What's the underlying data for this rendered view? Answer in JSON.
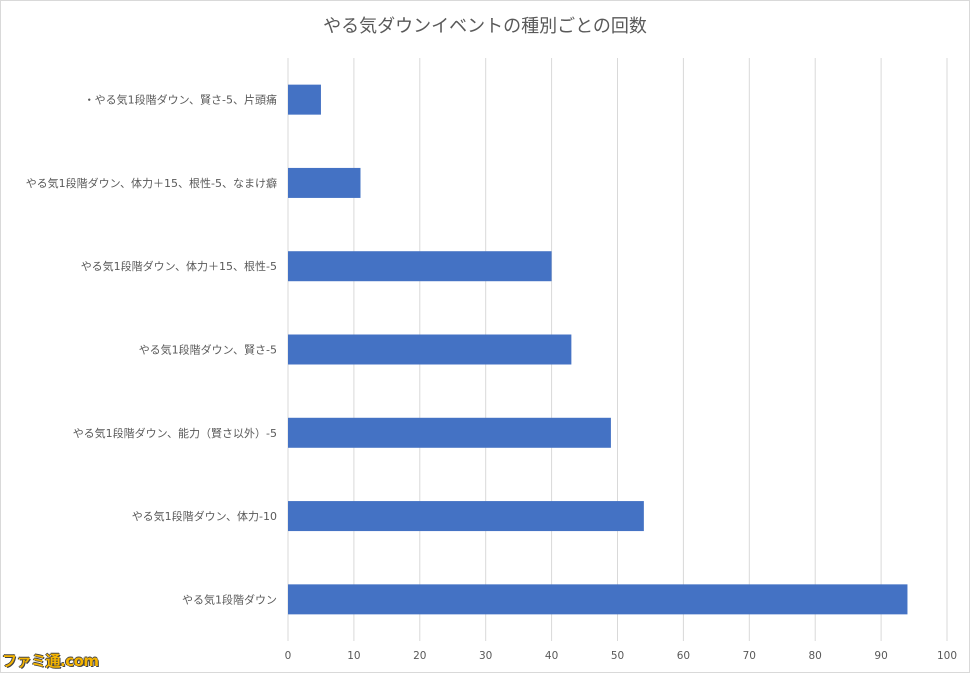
{
  "chart_data": {
    "type": "bar",
    "orientation": "horizontal",
    "title": "やる気ダウンイベントの種別ごとの回数",
    "categories": [
      "・やる気1段階ダウン、賢さ-5、片頭痛",
      "やる気1段階ダウン、体力＋15、根性-5、なまけ癖",
      "やる気1段階ダウン、体力＋15、根性-5",
      "やる気1段階ダウン、賢さ-5",
      "やる気1段階ダウン、能力（賢さ以外）-5",
      "やる気1段階ダウン、体力-10",
      "やる気1段階ダウン"
    ],
    "values": [
      5,
      11,
      40,
      43,
      49,
      54,
      94
    ],
    "xlim": [
      0,
      100
    ],
    "xticks": [
      "0",
      "10",
      "20",
      "30",
      "40",
      "50",
      "60",
      "70",
      "80",
      "90",
      "100"
    ],
    "grid": true,
    "bar_color": "#4472c4",
    "grid_color": "#d9d9d9"
  },
  "watermark": "ファミ通.com"
}
